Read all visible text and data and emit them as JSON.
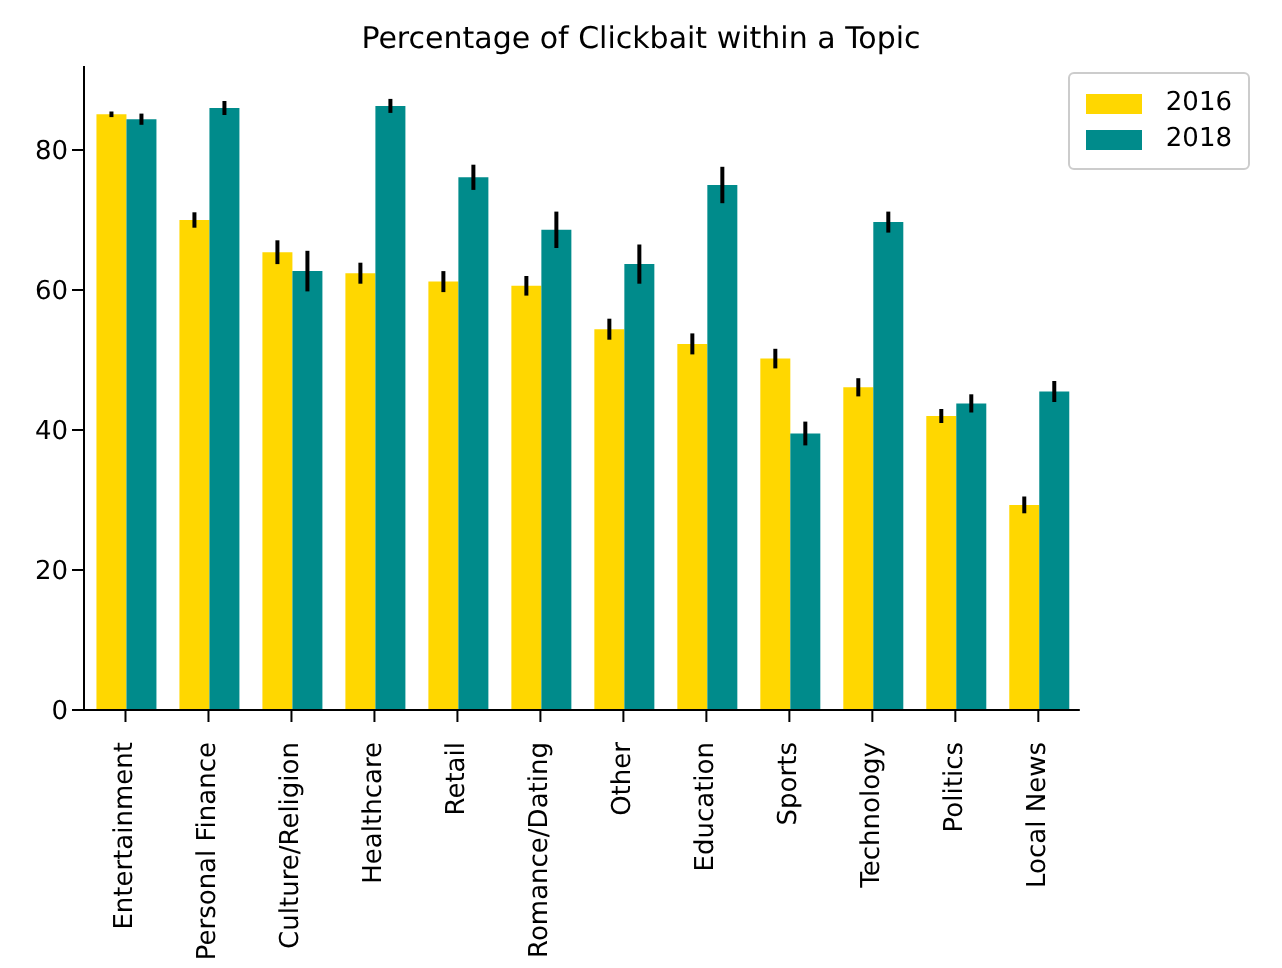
{
  "chart_data": {
    "type": "bar",
    "title": "Percentage of Clickbait within a Topic",
    "categories": [
      "Entertainment",
      "Personal Finance",
      "Culture/Religion",
      "Healthcare",
      "Retail",
      "Romance/Dating",
      "Other",
      "Education",
      "Sports",
      "Technology",
      "Politics",
      "Local News"
    ],
    "series": [
      {
        "name": "2016",
        "color": "#ffd700",
        "values": [
          85.1,
          70.0,
          65.4,
          62.4,
          61.2,
          60.6,
          54.4,
          52.3,
          50.2,
          46.1,
          42.0,
          29.3
        ],
        "errors": [
          0.4,
          1.1,
          1.7,
          1.5,
          1.5,
          1.4,
          1.5,
          1.5,
          1.4,
          1.3,
          1.0,
          1.2
        ]
      },
      {
        "name": "2018",
        "color": "#008b8b",
        "values": [
          84.4,
          86.0,
          62.7,
          86.3,
          76.1,
          68.6,
          63.7,
          75.0,
          39.5,
          69.7,
          43.8,
          45.5
        ],
        "errors": [
          0.8,
          1.0,
          2.9,
          1.0,
          1.8,
          2.6,
          2.8,
          2.6,
          1.7,
          1.5,
          1.3,
          1.5
        ]
      }
    ],
    "ylim": [
      0,
      92
    ],
    "yticks": [
      0,
      20,
      40,
      60,
      80
    ],
    "grid": false,
    "legend": "top right"
  }
}
